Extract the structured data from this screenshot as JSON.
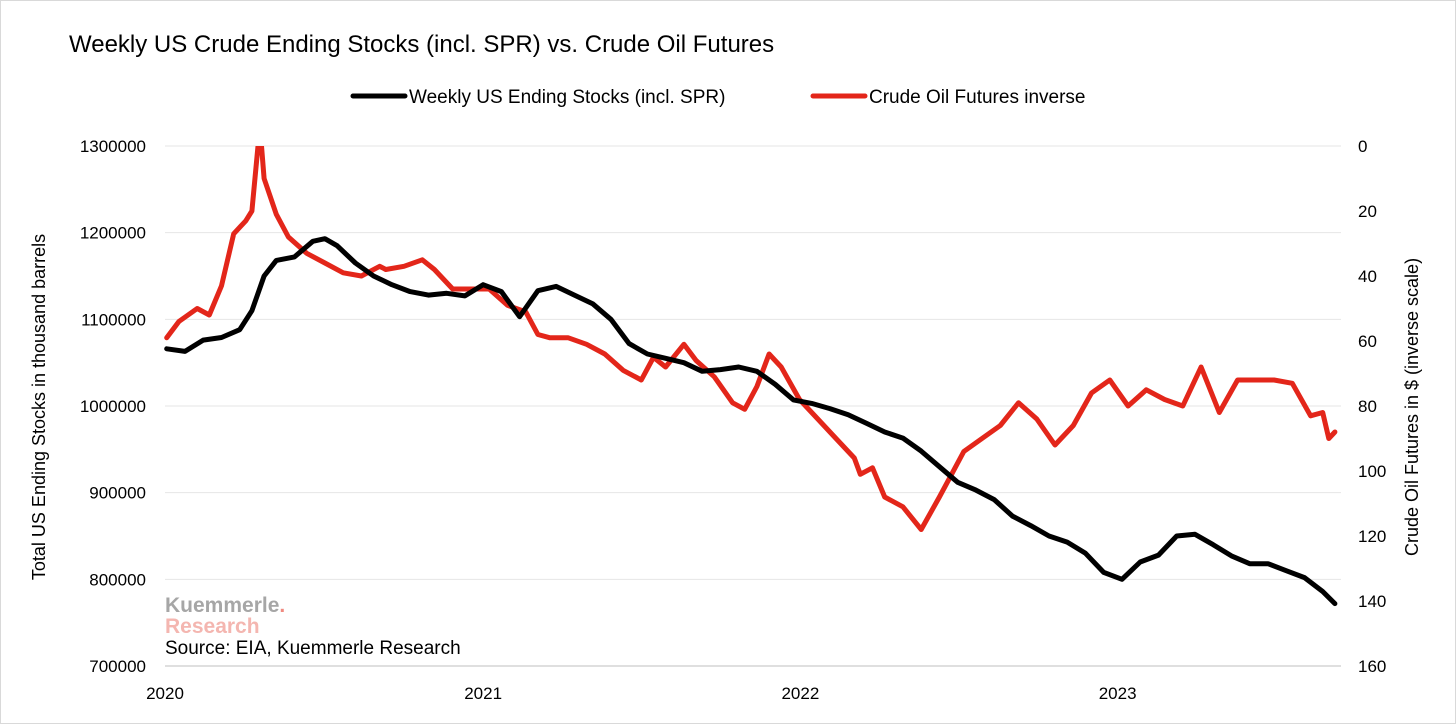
{
  "chart_data": {
    "type": "line",
    "title": "Weekly US Crude Ending Stocks (incl. SPR) vs. Crude Oil Futures",
    "legend_position": "top-center",
    "grid": "horizontal",
    "x_tick_labels": [
      "2020",
      "2021",
      "2022",
      "2023"
    ],
    "x_range": [
      "2020-01-01",
      "2023-09-15"
    ],
    "y_left": {
      "label": "Total US Ending Stocks in thousand barrels",
      "range": [
        700000,
        1300000
      ],
      "ticks": [
        "1300000",
        "1200000",
        "1100000",
        "1000000",
        "900000",
        "800000",
        "700000"
      ]
    },
    "y_right": {
      "label": "Crude Oil Futures in $ (inverse scale)",
      "range": [
        0,
        160
      ],
      "inverted": true,
      "ticks": [
        "0",
        "20",
        "40",
        "60",
        "80",
        "100",
        "120",
        "140",
        "160"
      ]
    },
    "series": [
      {
        "name": "Weekly US Ending Stocks (incl. SPR)",
        "color": "#000000",
        "axis": "left",
        "x": [
          "2020-01-03",
          "2020-01-24",
          "2020-02-14",
          "2020-03-06",
          "2020-03-27",
          "2020-04-10",
          "2020-04-24",
          "2020-05-08",
          "2020-05-29",
          "2020-06-19",
          "2020-07-03",
          "2020-07-17",
          "2020-08-07",
          "2020-08-28",
          "2020-09-18",
          "2020-10-09",
          "2020-10-30",
          "2020-11-20",
          "2020-12-11",
          "2021-01-01",
          "2021-01-22",
          "2021-02-12",
          "2021-03-05",
          "2021-03-26",
          "2021-04-16",
          "2021-05-07",
          "2021-05-28",
          "2021-06-18",
          "2021-07-09",
          "2021-07-30",
          "2021-08-20",
          "2021-09-10",
          "2021-10-01",
          "2021-10-22",
          "2021-11-12",
          "2021-12-03",
          "2021-12-24",
          "2022-01-14",
          "2022-02-04",
          "2022-02-25",
          "2022-03-18",
          "2022-04-08",
          "2022-04-29",
          "2022-05-20",
          "2022-06-10",
          "2022-07-01",
          "2022-07-22",
          "2022-08-12",
          "2022-09-02",
          "2022-09-23",
          "2022-10-14",
          "2022-11-04",
          "2022-11-25",
          "2022-12-16",
          "2023-01-06",
          "2023-01-27",
          "2023-02-17",
          "2023-03-10",
          "2023-03-31",
          "2023-04-21",
          "2023-05-12",
          "2023-06-02",
          "2023-06-23",
          "2023-07-14",
          "2023-08-04",
          "2023-08-25",
          "2023-09-08"
        ],
        "values": [
          1066000,
          1063000,
          1076000,
          1079000,
          1088000,
          1110000,
          1150000,
          1168000,
          1172000,
          1190000,
          1193000,
          1185000,
          1165000,
          1150000,
          1140000,
          1132000,
          1128000,
          1130000,
          1127000,
          1140000,
          1132000,
          1103000,
          1133000,
          1138000,
          1128000,
          1118000,
          1100000,
          1072000,
          1060000,
          1055000,
          1050000,
          1040000,
          1042000,
          1045000,
          1040000,
          1025000,
          1007000,
          1003000,
          997000,
          990000,
          980000,
          970000,
          963000,
          948000,
          930000,
          912000,
          903000,
          892000,
          873000,
          862000,
          850000,
          843000,
          830000,
          808000,
          800000,
          820000,
          828000,
          850000,
          852000,
          840000,
          827000,
          818000,
          818000,
          810000,
          802000,
          786000,
          772000
        ]
      },
      {
        "name": "Crude Oil Futures inverse",
        "color": "#e3261a",
        "axis": "right",
        "x": [
          "2020-01-03",
          "2020-01-17",
          "2020-02-07",
          "2020-02-21",
          "2020-03-06",
          "2020-03-13",
          "2020-03-20",
          "2020-03-27",
          "2020-04-03",
          "2020-04-10",
          "2020-04-17",
          "2020-04-21",
          "2020-04-24",
          "2020-05-08",
          "2020-05-22",
          "2020-06-12",
          "2020-07-03",
          "2020-07-24",
          "2020-08-14",
          "2020-09-04",
          "2020-09-11",
          "2020-10-02",
          "2020-10-23",
          "2020-11-06",
          "2020-11-27",
          "2020-12-18",
          "2021-01-08",
          "2021-01-29",
          "2021-02-19",
          "2021-03-05",
          "2021-03-19",
          "2021-04-09",
          "2021-04-30",
          "2021-05-21",
          "2021-06-11",
          "2021-07-02",
          "2021-07-16",
          "2021-07-30",
          "2021-08-20",
          "2021-09-03",
          "2021-09-24",
          "2021-10-15",
          "2021-10-29",
          "2021-11-12",
          "2021-11-26",
          "2021-12-10",
          "2021-12-31",
          "2022-01-21",
          "2022-02-11",
          "2022-03-04",
          "2022-03-11",
          "2022-03-25",
          "2022-04-08",
          "2022-04-29",
          "2022-05-20",
          "2022-06-10",
          "2022-06-24",
          "2022-07-08",
          "2022-07-29",
          "2022-08-19",
          "2022-09-09",
          "2022-09-30",
          "2022-10-21",
          "2022-11-11",
          "2022-12-02",
          "2022-12-23",
          "2023-01-13",
          "2023-02-03",
          "2023-02-24",
          "2023-03-17",
          "2023-04-07",
          "2023-04-28",
          "2023-05-19",
          "2023-06-09",
          "2023-06-30",
          "2023-07-21",
          "2023-08-11",
          "2023-08-25",
          "2023-09-01",
          "2023-09-08"
        ],
        "values": [
          59,
          54,
          50,
          52,
          43,
          35,
          27,
          25,
          23,
          20,
          0,
          0,
          10,
          21,
          28,
          33,
          36,
          39,
          40,
          37,
          38,
          37,
          35,
          38,
          44,
          44,
          44,
          49,
          51,
          58,
          59,
          59,
          61,
          64,
          69,
          72,
          65,
          68,
          61,
          66,
          71,
          79,
          81,
          74,
          64,
          68,
          78,
          84,
          90,
          96,
          101,
          99,
          108,
          111,
          118,
          108,
          101,
          94,
          90,
          86,
          79,
          84,
          92,
          86,
          76,
          72,
          80,
          75,
          78,
          80,
          68,
          82,
          72,
          72,
          72,
          73,
          83,
          82,
          90,
          88
        ]
      }
    ]
  },
  "source_text": "Source: EIA, Kuemmerle Research",
  "logo": {
    "line1": "Kuemmerle",
    "dot": ".",
    "line2": "Research"
  }
}
